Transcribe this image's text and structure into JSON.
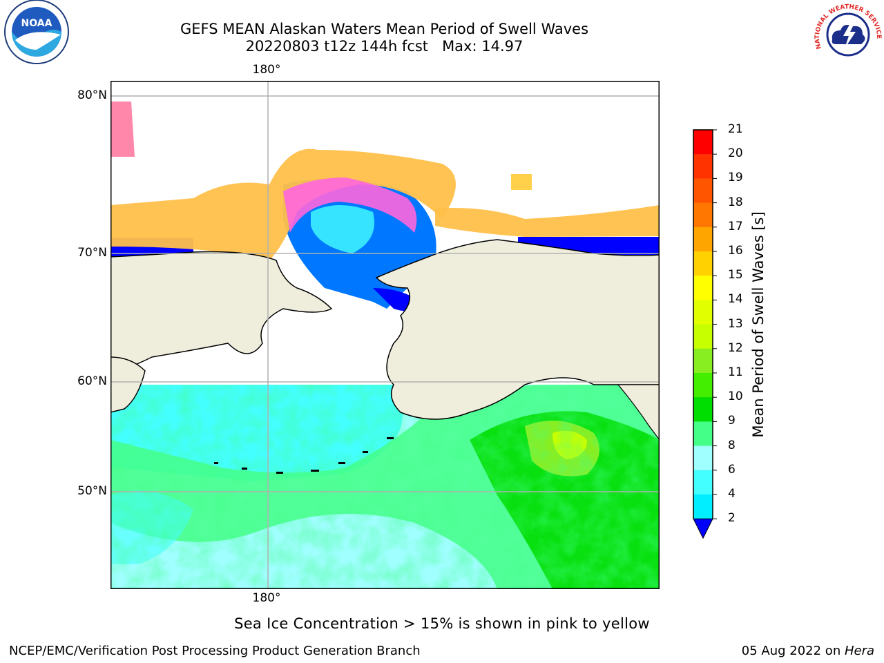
{
  "header": {
    "title_line1": "GEFS MEAN Alaskan Waters Mean Period of Swell Waves",
    "title_line2": "20220803 t12z 144h fcst   Max: 14.97"
  },
  "logos": {
    "left": {
      "icon": "noaa-logo",
      "text": "NOAA"
    },
    "right": {
      "icon": "nws-logo",
      "text": "NATIONAL WEATHER SERVICE"
    }
  },
  "map": {
    "lon_label_top": "180°",
    "lon_label_bottom": "180°",
    "lat_labels": [
      "80°N",
      "70°N",
      "60°N",
      "50°N"
    ],
    "colors": {
      "land": "#efeedd",
      "ice_white": "#ffffff",
      "frame": "#000000",
      "grid": "#b0b0b0"
    }
  },
  "colorbar": {
    "label": "Mean Period of Swell Waves [s]",
    "ticks": [
      "21",
      "20",
      "19",
      "18",
      "17",
      "16",
      "15",
      "14",
      "13",
      "12",
      "11",
      "10",
      "9",
      "8",
      "6",
      "4",
      "2"
    ],
    "colors": [
      "#ff0000",
      "#ff3300",
      "#ff5500",
      "#ff7700",
      "#ffa500",
      "#ffd100",
      "#ffff00",
      "#e2ff00",
      "#c8ff00",
      "#88ee22",
      "#44ee00",
      "#00dd00",
      "#44ff88",
      "#a0ffff",
      "#44ffff",
      "#00eeff",
      "#0077ff"
    ],
    "under_color": "#0000ff"
  },
  "caption": "Sea Ice Concentration > 15% is shown in pink to yellow",
  "footer": {
    "left": "NCEP/EMC/Verification Post Processing Product Generation Branch",
    "right_prefix": "05 Aug 2022 on ",
    "right_machine": "Hera"
  }
}
